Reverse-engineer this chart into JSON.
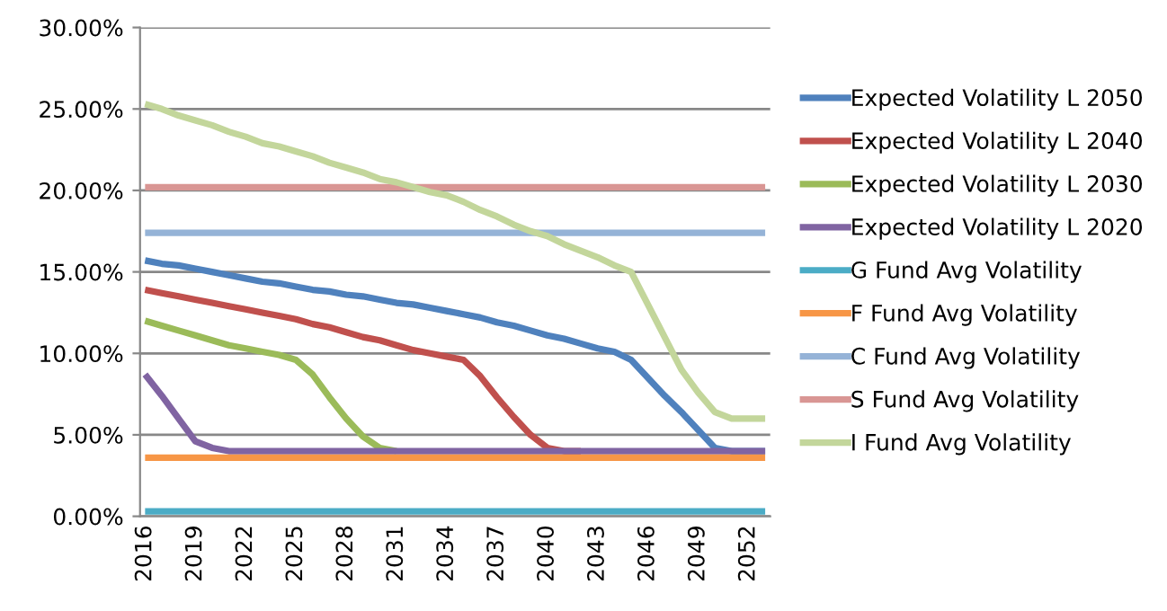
{
  "chart_data": {
    "type": "line",
    "categories": [
      "2016",
      null,
      null,
      "2019",
      null,
      null,
      "2022",
      null,
      null,
      "2025",
      null,
      null,
      "2028",
      null,
      null,
      "2031",
      null,
      null,
      "2034",
      null,
      null,
      "2037",
      null,
      null,
      "2040",
      null,
      null,
      "2043",
      null,
      null,
      "2046",
      null,
      null,
      "2049",
      null,
      null,
      "2052",
      null
    ],
    "series": [
      {
        "name": "Expected Volatility L 2050",
        "color": "#4f81bd",
        "values": [
          15.7,
          15.5,
          15.4,
          15.2,
          15.0,
          14.8,
          14.6,
          14.4,
          14.3,
          14.1,
          13.9,
          13.8,
          13.6,
          13.5,
          13.3,
          13.1,
          13.0,
          12.8,
          12.6,
          12.4,
          12.2,
          11.9,
          11.7,
          11.4,
          11.1,
          10.9,
          10.6,
          10.3,
          10.1,
          9.6,
          8.5,
          7.4,
          6.4,
          5.3,
          4.2,
          4.0,
          4.0,
          4.0
        ]
      },
      {
        "name": "Expected Volatility L 2040",
        "color": "#c0504d",
        "values": [
          13.9,
          13.7,
          13.5,
          13.3,
          13.1,
          12.9,
          12.7,
          12.5,
          12.3,
          12.1,
          11.8,
          11.6,
          11.3,
          11.0,
          10.8,
          10.5,
          10.2,
          10.0,
          9.8,
          9.6,
          8.6,
          7.3,
          6.1,
          5.0,
          4.2,
          4.0,
          4.0,
          null,
          null,
          null,
          null,
          null,
          null,
          null,
          null,
          null,
          null,
          null
        ]
      },
      {
        "name": "Expected Volatility L 2030",
        "color": "#9bbb59",
        "values": [
          12.0,
          11.7,
          11.4,
          11.1,
          10.8,
          10.5,
          10.3,
          10.1,
          9.9,
          9.6,
          8.7,
          7.3,
          6.0,
          4.9,
          4.2,
          4.0,
          null,
          null,
          null,
          null,
          null,
          null,
          null,
          null,
          null,
          null,
          null,
          null,
          null,
          null,
          null,
          null,
          null,
          null,
          null,
          null,
          null,
          null
        ]
      },
      {
        "name": "Expected Volatility L 2020",
        "color": "#8064a2",
        "values": [
          8.7,
          7.4,
          6.0,
          4.6,
          4.2,
          4.0,
          4.0,
          4.0,
          4.0,
          4.0,
          4.0,
          4.0,
          4.0,
          4.0,
          4.0,
          4.0,
          4.0,
          4.0,
          4.0,
          4.0,
          4.0,
          4.0,
          4.0,
          4.0,
          4.0,
          4.0,
          4.0,
          4.0,
          4.0,
          4.0,
          4.0,
          4.0,
          4.0,
          4.0,
          4.0,
          4.0,
          4.0,
          4.0
        ]
      },
      {
        "name": "G Fund Avg Volatility",
        "color": "#4bacc6",
        "values": [
          0.3,
          0.3,
          0.3,
          0.3,
          0.3,
          0.3,
          0.3,
          0.3,
          0.3,
          0.3,
          0.3,
          0.3,
          0.3,
          0.3,
          0.3,
          0.3,
          0.3,
          0.3,
          0.3,
          0.3,
          0.3,
          0.3,
          0.3,
          0.3,
          0.3,
          0.3,
          0.3,
          0.3,
          0.3,
          0.3,
          0.3,
          0.3,
          0.3,
          0.3,
          0.3,
          0.3,
          0.3,
          0.3
        ]
      },
      {
        "name": "F Fund Avg Volatility",
        "color": "#f79646",
        "values": [
          3.6,
          3.6,
          3.6,
          3.6,
          3.6,
          3.6,
          3.6,
          3.6,
          3.6,
          3.6,
          3.6,
          3.6,
          3.6,
          3.6,
          3.6,
          3.6,
          3.6,
          3.6,
          3.6,
          3.6,
          3.6,
          3.6,
          3.6,
          3.6,
          3.6,
          3.6,
          3.6,
          3.6,
          3.6,
          3.6,
          3.6,
          3.6,
          3.6,
          3.6,
          3.6,
          3.6,
          3.6,
          3.6
        ]
      },
      {
        "name": "C Fund Avg Volatility",
        "color": "#95b3d7",
        "values": [
          17.4,
          17.4,
          17.4,
          17.4,
          17.4,
          17.4,
          17.4,
          17.4,
          17.4,
          17.4,
          17.4,
          17.4,
          17.4,
          17.4,
          17.4,
          17.4,
          17.4,
          17.4,
          17.4,
          17.4,
          17.4,
          17.4,
          17.4,
          17.4,
          17.4,
          17.4,
          17.4,
          17.4,
          17.4,
          17.4,
          17.4,
          17.4,
          17.4,
          17.4,
          17.4,
          17.4,
          17.4,
          17.4
        ]
      },
      {
        "name": "S Fund Avg Volatility",
        "color": "#d99694",
        "values": [
          20.2,
          20.2,
          20.2,
          20.2,
          20.2,
          20.2,
          20.2,
          20.2,
          20.2,
          20.2,
          20.2,
          20.2,
          20.2,
          20.2,
          20.2,
          20.2,
          20.2,
          20.2,
          20.2,
          20.2,
          20.2,
          20.2,
          20.2,
          20.2,
          20.2,
          20.2,
          20.2,
          20.2,
          20.2,
          20.2,
          20.2,
          20.2,
          20.2,
          20.2,
          20.2,
          20.2,
          20.2,
          20.2
        ]
      },
      {
        "name": "I Fund Avg Volatility",
        "color": "#c3d69b",
        "values": [
          25.3,
          25.0,
          24.6,
          24.3,
          24.0,
          23.6,
          23.3,
          22.9,
          22.7,
          22.4,
          22.1,
          21.7,
          21.4,
          21.1,
          20.7,
          20.5,
          20.2,
          19.9,
          19.7,
          19.3,
          18.8,
          18.4,
          17.9,
          17.5,
          17.2,
          16.7,
          16.3,
          15.9,
          15.4,
          15.0,
          13.0,
          11.0,
          9.0,
          7.6,
          6.4,
          6.0,
          6.0,
          6.0
        ]
      }
    ],
    "ylim": [
      0,
      30
    ],
    "yticks": [
      {
        "value": 0,
        "label": "0.00%"
      },
      {
        "value": 5,
        "label": "5.00%"
      },
      {
        "value": 10,
        "label": "10.00%"
      },
      {
        "value": 15,
        "label": "15.00%"
      },
      {
        "value": 20,
        "label": "20.00%"
      },
      {
        "value": 25,
        "label": "25.00%"
      },
      {
        "value": 30,
        "label": "30.00%"
      }
    ],
    "grid": "y",
    "legend": "right",
    "marker": "none",
    "line_style": "solid"
  }
}
